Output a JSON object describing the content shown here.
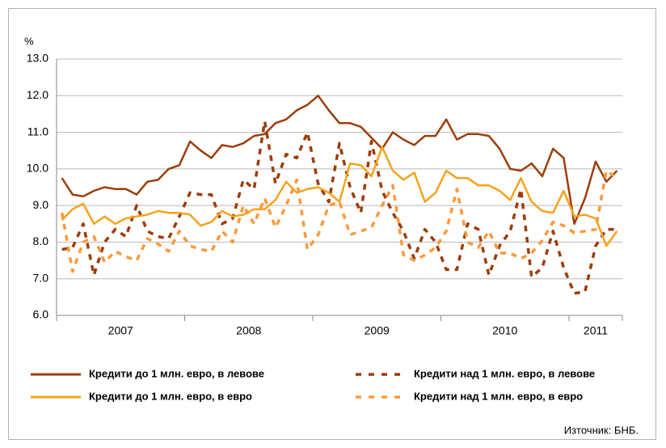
{
  "chart_data": {
    "type": "line",
    "y_label": "%",
    "source": "Източник: БНБ.",
    "categories": [
      "2007",
      null,
      null,
      null,
      null,
      null,
      null,
      null,
      null,
      null,
      null,
      null,
      "2008",
      null,
      null,
      null,
      null,
      null,
      null,
      null,
      null,
      null,
      null,
      null,
      "2009",
      null,
      null,
      null,
      null,
      null,
      null,
      null,
      null,
      null,
      null,
      null,
      "2010",
      null,
      null,
      null,
      null,
      null,
      null,
      null,
      null,
      null,
      null,
      null,
      "2011",
      null,
      null,
      null,
      null
    ],
    "ylim": [
      6,
      13
    ],
    "yticks": [
      {
        "value": 6,
        "label": "6.0"
      },
      {
        "value": 7,
        "label": "7.0"
      },
      {
        "value": 8,
        "label": "8.0"
      },
      {
        "value": 9,
        "label": "9.0"
      },
      {
        "value": 10,
        "label": "10.0"
      },
      {
        "value": 11,
        "label": "11.0"
      },
      {
        "value": 12,
        "label": "12.0"
      },
      {
        "value": 13,
        "label": "13.0"
      }
    ],
    "grid": true,
    "series": [
      {
        "name": "Кредити до 1 млн. евро, в левове",
        "color": "#9c3d0a",
        "dashed": false,
        "values": [
          9.75,
          9.3,
          9.25,
          9.4,
          9.5,
          9.45,
          9.45,
          9.3,
          9.65,
          9.7,
          10.0,
          10.1,
          10.75,
          10.5,
          10.3,
          10.65,
          10.6,
          10.7,
          10.9,
          10.95,
          11.25,
          11.35,
          11.6,
          11.75,
          12.0,
          11.6,
          11.25,
          11.25,
          11.15,
          10.85,
          10.55,
          11.0,
          10.8,
          10.65,
          10.9,
          10.9,
          11.35,
          10.8,
          10.95,
          10.95,
          10.9,
          10.55,
          10.0,
          9.95,
          10.15,
          9.8,
          10.55,
          10.3,
          8.5,
          9.2,
          10.2,
          9.65,
          9.95
        ]
      },
      {
        "name": "Кредити над 1 млн. евро, в левове",
        "color": "#9c3d0a",
        "dashed": true,
        "values": [
          7.8,
          7.85,
          8.5,
          7.1,
          8.0,
          8.35,
          8.15,
          9.0,
          8.3,
          8.15,
          8.1,
          8.7,
          9.35,
          9.3,
          9.3,
          8.5,
          8.65,
          9.7,
          9.45,
          11.3,
          9.6,
          10.4,
          10.3,
          11.0,
          9.6,
          9.1,
          10.7,
          9.5,
          8.8,
          10.75,
          9.4,
          8.8,
          8.3,
          7.55,
          8.35,
          8.0,
          7.25,
          7.25,
          8.5,
          8.35,
          7.1,
          7.9,
          8.3,
          9.45,
          7.05,
          7.3,
          8.3,
          7.3,
          6.6,
          6.65,
          7.9,
          8.35,
          8.35
        ]
      },
      {
        "name": "Кредити до 1 млн. евро, в евро",
        "color": "#f7a21b",
        "dashed": false,
        "values": [
          8.6,
          8.9,
          9.05,
          8.5,
          8.7,
          8.5,
          8.65,
          8.7,
          8.75,
          8.85,
          8.8,
          8.8,
          8.75,
          8.45,
          8.55,
          8.85,
          8.7,
          8.75,
          8.9,
          8.9,
          9.15,
          9.65,
          9.35,
          9.45,
          9.5,
          9.35,
          9.1,
          10.15,
          10.1,
          9.8,
          10.6,
          9.95,
          9.7,
          9.9,
          9.1,
          9.35,
          9.95,
          9.75,
          9.75,
          9.55,
          9.55,
          9.4,
          9.15,
          9.75,
          9.1,
          8.85,
          8.8,
          9.4,
          8.7,
          8.75,
          8.65,
          7.9,
          8.3
        ]
      },
      {
        "name": "Кредити над 1 млн. евро, в евро",
        "color": "#fa9a3c",
        "dashed": true,
        "values": [
          8.8,
          7.2,
          8.0,
          8.15,
          7.45,
          7.75,
          7.6,
          7.5,
          8.1,
          7.95,
          7.75,
          8.3,
          7.9,
          7.8,
          7.75,
          8.3,
          8.0,
          9.0,
          8.5,
          9.2,
          8.4,
          9.0,
          9.7,
          7.8,
          8.2,
          9.0,
          9.1,
          8.2,
          8.3,
          8.4,
          9.0,
          9.55,
          7.65,
          7.5,
          7.65,
          7.85,
          8.3,
          9.45,
          8.0,
          7.85,
          8.3,
          7.7,
          7.7,
          7.55,
          7.7,
          8.05,
          8.55,
          8.45,
          8.25,
          8.3,
          8.35,
          9.95,
          9.75
        ]
      }
    ]
  }
}
